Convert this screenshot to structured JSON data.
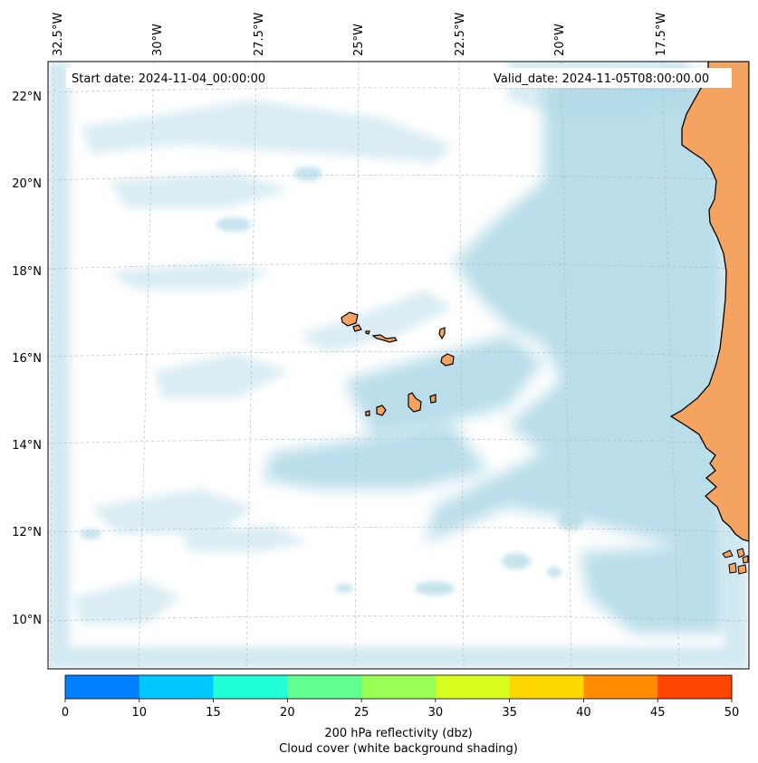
{
  "map": {
    "start_date": "Start date: 2024-11-04_00:00:00",
    "valid_date": "Valid_date: 2024-11-05T08:00:00.00",
    "longitude_labels": [
      "32.5°W",
      "30°W",
      "27.5°W",
      "25°W",
      "22.5°W",
      "20°W",
      "17.5°W"
    ],
    "latitude_labels": [
      "22°N",
      "20°N",
      "18°N",
      "16°N",
      "14°N",
      "12°N",
      "10°N"
    ],
    "colors": {
      "land": "#f4a460",
      "cloud": "#add8e6",
      "gridline": "#b0b0b0",
      "coast": "#000000"
    }
  },
  "colorbar": {
    "ticks": [
      "0",
      "10",
      "15",
      "20",
      "25",
      "30",
      "35",
      "40",
      "45",
      "50"
    ],
    "colors": [
      "#0080ff",
      "#00c8ff",
      "#20ffd8",
      "#60ff90",
      "#99ff55",
      "#d8ff20",
      "#ffd700",
      "#ff8c00",
      "#ff4500"
    ],
    "label_line1": "200 hPa reflectivity (dbz)",
    "label_line2": "Cloud cover (white background shading)"
  }
}
